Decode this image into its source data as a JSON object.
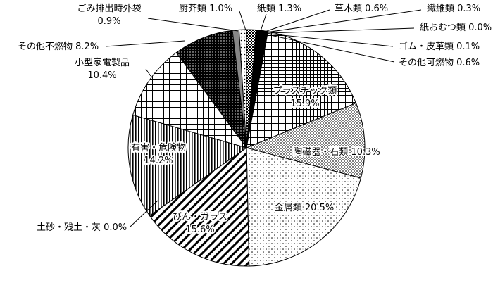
{
  "chart_data": {
    "type": "pie",
    "unit": "%",
    "slices": [
      {
        "name": "紙類",
        "value": 1.3,
        "color": "#000000"
      },
      {
        "name": "草木類",
        "value": 0.6,
        "color": "#000000"
      },
      {
        "name": "繊維類",
        "value": 0.3,
        "color": "#000000"
      },
      {
        "name": "紙おむつ類",
        "value": 0.0,
        "color": "#000000"
      },
      {
        "name": "ゴム・皮革類",
        "value": 0.1,
        "color": "#000000"
      },
      {
        "name": "その他可燃物",
        "value": 0.6,
        "color": "#000000"
      },
      {
        "name": "プラスチック類",
        "value": 15.9,
        "color": "#000000"
      },
      {
        "name": "陶磁器・石類",
        "value": 10.3,
        "color": "#000000"
      },
      {
        "name": "金属類",
        "value": 20.5,
        "color": "#000000"
      },
      {
        "name": "びん・ガラス",
        "value": 15.6,
        "color": "#000000"
      },
      {
        "name": "土砂・残土・灰",
        "value": 0.0,
        "color": "#000000"
      },
      {
        "name": "有害・危険物",
        "value": 14.2,
        "color": "#000000"
      },
      {
        "name": "小型家電製品",
        "value": 10.4,
        "color": "#000000"
      },
      {
        "name": "その他不燃物",
        "value": 8.2,
        "color": "#000000"
      },
      {
        "name": "ごみ排出時外袋",
        "value": 0.9,
        "color": "#000000"
      },
      {
        "name": "厨芥類",
        "value": 1.0,
        "color": "#000000"
      }
    ]
  }
}
